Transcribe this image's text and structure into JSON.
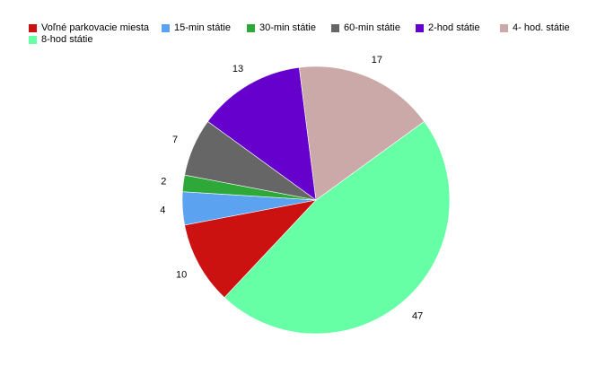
{
  "chart_data": {
    "type": "pie",
    "title": "",
    "legend_position": "top",
    "categories": [
      "Voľné parkovacie miesta",
      "15-min státie",
      "30-min státie",
      "60-min státie",
      "2-hod státie",
      "4- hod. státie",
      "8-hod státie"
    ],
    "values": [
      10,
      4,
      2,
      7,
      13,
      17,
      47
    ],
    "labels": [
      "10",
      "4",
      "2",
      "7",
      "13",
      "17",
      "47"
    ],
    "colors": [
      "#cc1111",
      "#5ba3f0",
      "#2fa83a",
      "#666666",
      "#6600cc",
      "#cba9a8",
      "#66ffa6"
    ]
  }
}
